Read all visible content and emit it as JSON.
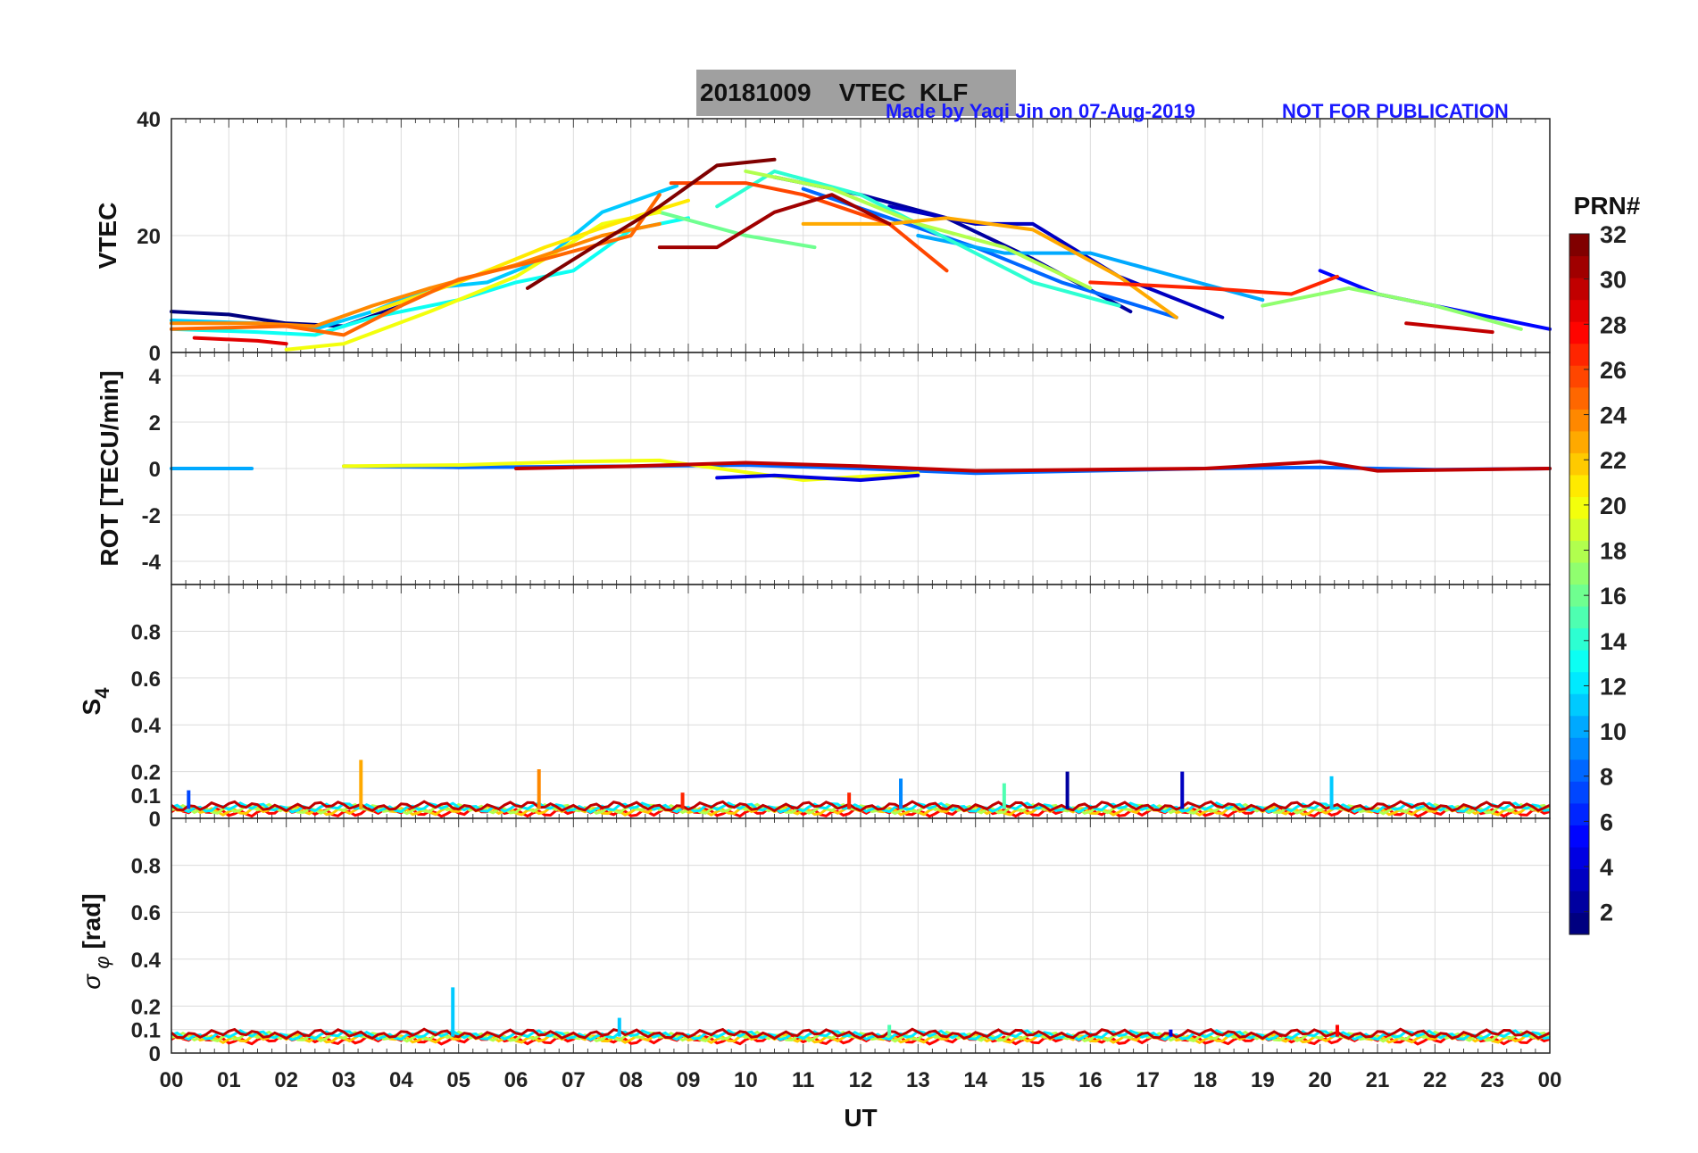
{
  "figure": {
    "title": "20181009    VTEC  KLF",
    "credit": "Made by Yaqi Jin on 07-Aug-2019",
    "notice": "NOT FOR PUBLICATION"
  },
  "chart_data": [
    {
      "type": "line",
      "panel": "vtec",
      "ylabel": "VTEC",
      "ylim": [
        0,
        40
      ],
      "yticks": [
        "0",
        "20",
        "40"
      ],
      "xlim": [
        0,
        24
      ],
      "series": [
        {
          "prn": 1,
          "x": [
            0,
            1,
            2,
            3,
            4
          ],
          "y": [
            7,
            6.5,
            5,
            4.5,
            8
          ]
        },
        {
          "prn": 2,
          "x": [
            10.5,
            12,
            13.5,
            15,
            16.7
          ],
          "y": [
            30,
            27,
            23,
            16,
            7
          ]
        },
        {
          "prn": 3,
          "x": [
            12.5,
            14,
            15,
            16.5,
            18.3
          ],
          "y": [
            25,
            22,
            22,
            13,
            6
          ]
        },
        {
          "prn": 5,
          "x": [
            20,
            21,
            22,
            23,
            24
          ],
          "y": [
            14,
            10,
            8,
            6,
            4
          ]
        },
        {
          "prn": 8,
          "x": [
            11,
            12.5,
            14,
            15.5,
            17.5
          ],
          "y": [
            28,
            23,
            18,
            12,
            6
          ]
        },
        {
          "prn": 10,
          "x": [
            13,
            14.5,
            16,
            17.5,
            19
          ],
          "y": [
            20,
            17,
            17,
            13,
            9
          ]
        },
        {
          "prn": 11,
          "x": [
            0,
            1.5,
            2.5,
            3.5,
            4.5,
            5.5,
            6.5,
            7.5,
            8.8
          ],
          "y": [
            5.5,
            5,
            4,
            7,
            11,
            12,
            16,
            24,
            28.5
          ]
        },
        {
          "prn": 13,
          "x": [
            0,
            1.5,
            2.5,
            3.5,
            5,
            6,
            7,
            8,
            9
          ],
          "y": [
            4,
            3.5,
            3,
            6,
            9,
            12,
            14,
            21,
            23
          ]
        },
        {
          "prn": 14,
          "x": [
            9.5,
            10.5,
            12,
            13,
            14,
            15,
            16.5
          ],
          "y": [
            25,
            31,
            27,
            22,
            17,
            12,
            8
          ]
        },
        {
          "prn": 16,
          "x": [
            8.5,
            10,
            11.2
          ],
          "y": [
            24,
            20,
            18
          ]
        },
        {
          "prn": 17,
          "x": [
            19,
            20.5,
            22,
            23.5
          ],
          "y": [
            8,
            11,
            8,
            4
          ]
        },
        {
          "prn": 18,
          "x": [
            10,
            11.5,
            13,
            14.5,
            16
          ],
          "y": [
            31,
            28,
            22,
            18,
            11
          ]
        },
        {
          "prn": 20,
          "x": [
            2,
            3,
            4.5,
            6,
            7.5,
            8.5
          ],
          "y": [
            0.5,
            1.5,
            7,
            13,
            22,
            24
          ]
        },
        {
          "prn": 21,
          "x": [
            3.5,
            5,
            6.5,
            8,
            9
          ],
          "y": [
            7,
            12,
            18,
            23,
            26
          ]
        },
        {
          "prn": 23,
          "x": [
            11,
            12.5,
            13.5,
            15,
            16.5,
            17.5
          ],
          "y": [
            22,
            22,
            23,
            21,
            13,
            6
          ]
        },
        {
          "prn": 24,
          "x": [
            0,
            1.5,
            2.5,
            3.5,
            4.5,
            6,
            7.5,
            8.5
          ],
          "y": [
            5,
            5,
            4.5,
            8,
            11,
            15,
            20,
            22
          ]
        },
        {
          "prn": 25,
          "x": [
            0,
            2,
            3,
            4,
            5,
            6.5,
            8,
            8.5
          ],
          "y": [
            4,
            4.5,
            3,
            8,
            12.5,
            16,
            20,
            27
          ]
        },
        {
          "prn": 26,
          "x": [
            8.7,
            10,
            11,
            12.5,
            13.5
          ],
          "y": [
            29,
            29,
            27,
            22,
            14
          ]
        },
        {
          "prn": 27,
          "x": [
            16,
            18,
            19.5,
            20.3
          ],
          "y": [
            12,
            11,
            10,
            13
          ]
        },
        {
          "prn": 29,
          "x": [
            0.4,
            1.5,
            2
          ],
          "y": [
            2.5,
            2,
            1.5
          ]
        },
        {
          "prn": 30,
          "x": [
            21.5,
            22.5,
            23
          ],
          "y": [
            5,
            4,
            3.5
          ]
        },
        {
          "prn": 31,
          "x": [
            8.5,
            9.5,
            10.5,
            11.5,
            12.5
          ],
          "y": [
            18,
            18,
            24,
            27,
            22
          ]
        },
        {
          "prn": 32,
          "x": [
            6.2,
            7.5,
            8.5,
            9.5,
            10.5
          ],
          "y": [
            11,
            19,
            25,
            32,
            33
          ]
        }
      ]
    },
    {
      "type": "line",
      "panel": "rot",
      "ylabel": "ROT [TECU/min]",
      "ylim": [
        -5,
        5
      ],
      "yticks": [
        "-4",
        "-2",
        "0",
        "2",
        "4"
      ],
      "xlim": [
        0,
        24
      ],
      "series": [
        {
          "prn": 10,
          "x": [
            0,
            1.4
          ],
          "y": [
            0,
            0
          ]
        },
        {
          "prn": 8,
          "x": [
            3,
            5,
            8,
            10,
            12,
            14,
            16,
            18,
            20,
            22,
            24
          ],
          "y": [
            0.1,
            0.05,
            0.1,
            0.15,
            0,
            -0.2,
            -0.1,
            0,
            0.05,
            -0.05,
            0
          ]
        },
        {
          "prn": 20,
          "x": [
            3,
            5,
            7,
            8.5,
            11,
            13
          ],
          "y": [
            0.1,
            0.15,
            0.3,
            0.35,
            -0.5,
            -0.2
          ]
        },
        {
          "prn": 30,
          "x": [
            6,
            8,
            10,
            12,
            14,
            16,
            18,
            20,
            21,
            24
          ],
          "y": [
            0,
            0.1,
            0.25,
            0.1,
            -0.1,
            -0.05,
            0,
            0.3,
            -0.1,
            0
          ]
        },
        {
          "prn": 4,
          "x": [
            9.5,
            10.5,
            12,
            13
          ],
          "y": [
            -0.4,
            -0.3,
            -0.5,
            -0.3
          ]
        }
      ]
    },
    {
      "type": "line",
      "panel": "s4",
      "ylabel": "S4",
      "ylim": [
        0,
        1
      ],
      "yticks": [
        "0",
        "0.1",
        "0.2",
        "0.4",
        "0.6",
        "0.8"
      ],
      "xlim": [
        0,
        24
      ],
      "baseline": 0.04,
      "spikes": [
        {
          "x": 0.3,
          "y": 0.12,
          "prn": 7
        },
        {
          "x": 3.3,
          "y": 0.25,
          "prn": 23
        },
        {
          "x": 6.4,
          "y": 0.21,
          "prn": 24
        },
        {
          "x": 8.9,
          "y": 0.11,
          "prn": 27
        },
        {
          "x": 11.8,
          "y": 0.11,
          "prn": 27
        },
        {
          "x": 12.7,
          "y": 0.17,
          "prn": 9
        },
        {
          "x": 14.5,
          "y": 0.15,
          "prn": 15
        },
        {
          "x": 15.6,
          "y": 0.2,
          "prn": 2
        },
        {
          "x": 17.6,
          "y": 0.2,
          "prn": 3
        },
        {
          "x": 20.2,
          "y": 0.18,
          "prn": 11
        }
      ]
    },
    {
      "type": "line",
      "panel": "sigma_phi",
      "ylabel": "σ φ [rad]",
      "ylim": [
        0,
        1
      ],
      "yticks": [
        "0",
        "0.1",
        "0.2",
        "0.4",
        "0.6",
        "0.8"
      ],
      "xlim": [
        0,
        24
      ],
      "baseline": 0.07,
      "spikes": [
        {
          "x": 4.9,
          "y": 0.28,
          "prn": 11
        },
        {
          "x": 7.8,
          "y": 0.15,
          "prn": 11
        },
        {
          "x": 12.5,
          "y": 0.12,
          "prn": 15
        },
        {
          "x": 17.4,
          "y": 0.1,
          "prn": 4
        },
        {
          "x": 20.3,
          "y": 0.12,
          "prn": 28
        }
      ]
    }
  ],
  "x_axis": {
    "label": "UT",
    "ticks": [
      "00",
      "01",
      "02",
      "03",
      "04",
      "05",
      "06",
      "07",
      "08",
      "09",
      "10",
      "11",
      "12",
      "13",
      "14",
      "15",
      "16",
      "17",
      "18",
      "19",
      "20",
      "21",
      "22",
      "23",
      "00"
    ]
  },
  "colorbar": {
    "title": "PRN#",
    "min": 1,
    "max": 32,
    "ticks": [
      "2",
      "4",
      "6",
      "8",
      "10",
      "12",
      "14",
      "16",
      "18",
      "20",
      "22",
      "24",
      "26",
      "28",
      "30",
      "32"
    ]
  }
}
